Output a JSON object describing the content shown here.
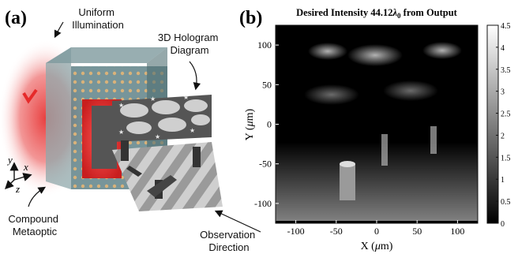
{
  "panel_a": {
    "label": "(a)",
    "callouts": {
      "illumination": [
        "Uniform",
        "Illumination"
      ],
      "hologram": [
        "3D Hologram",
        "Diagram"
      ],
      "metaoptic": [
        "Compound",
        "Metaoptic"
      ],
      "observation": [
        "Observation",
        "Direction"
      ]
    },
    "axes": {
      "y": "y",
      "x": "x",
      "z": "z"
    }
  },
  "panel_b": {
    "label": "(b)",
    "title_prefix": "Desired Intensity 44.12",
    "title_lambda": "λ",
    "title_sub": "0",
    "title_suffix": " from Output"
  },
  "chart_data": {
    "type": "heatmap",
    "title": "Desired Intensity 44.12λ0 from Output",
    "xlabel": "X (μm)",
    "ylabel": "Y (μm)",
    "xlim": [
      -125,
      125
    ],
    "ylim": [
      -125,
      125
    ],
    "x_ticks": [
      -100,
      -50,
      0,
      50,
      100
    ],
    "y_ticks": [
      100,
      50,
      0,
      -50,
      -100
    ],
    "colorbar": {
      "min": 0,
      "max": 4.5,
      "ticks": [
        0,
        0.5,
        1,
        1.5,
        2,
        2.5,
        3,
        3.5,
        4,
        4.5
      ],
      "colormap": "gray"
    }
  },
  "colors": {
    "background": "#000000",
    "illumination": "#e62a2a",
    "metaoptic_glass": "#5f8388",
    "hologram_plane": "#555555",
    "floor_plane": "#c8c8c8"
  }
}
